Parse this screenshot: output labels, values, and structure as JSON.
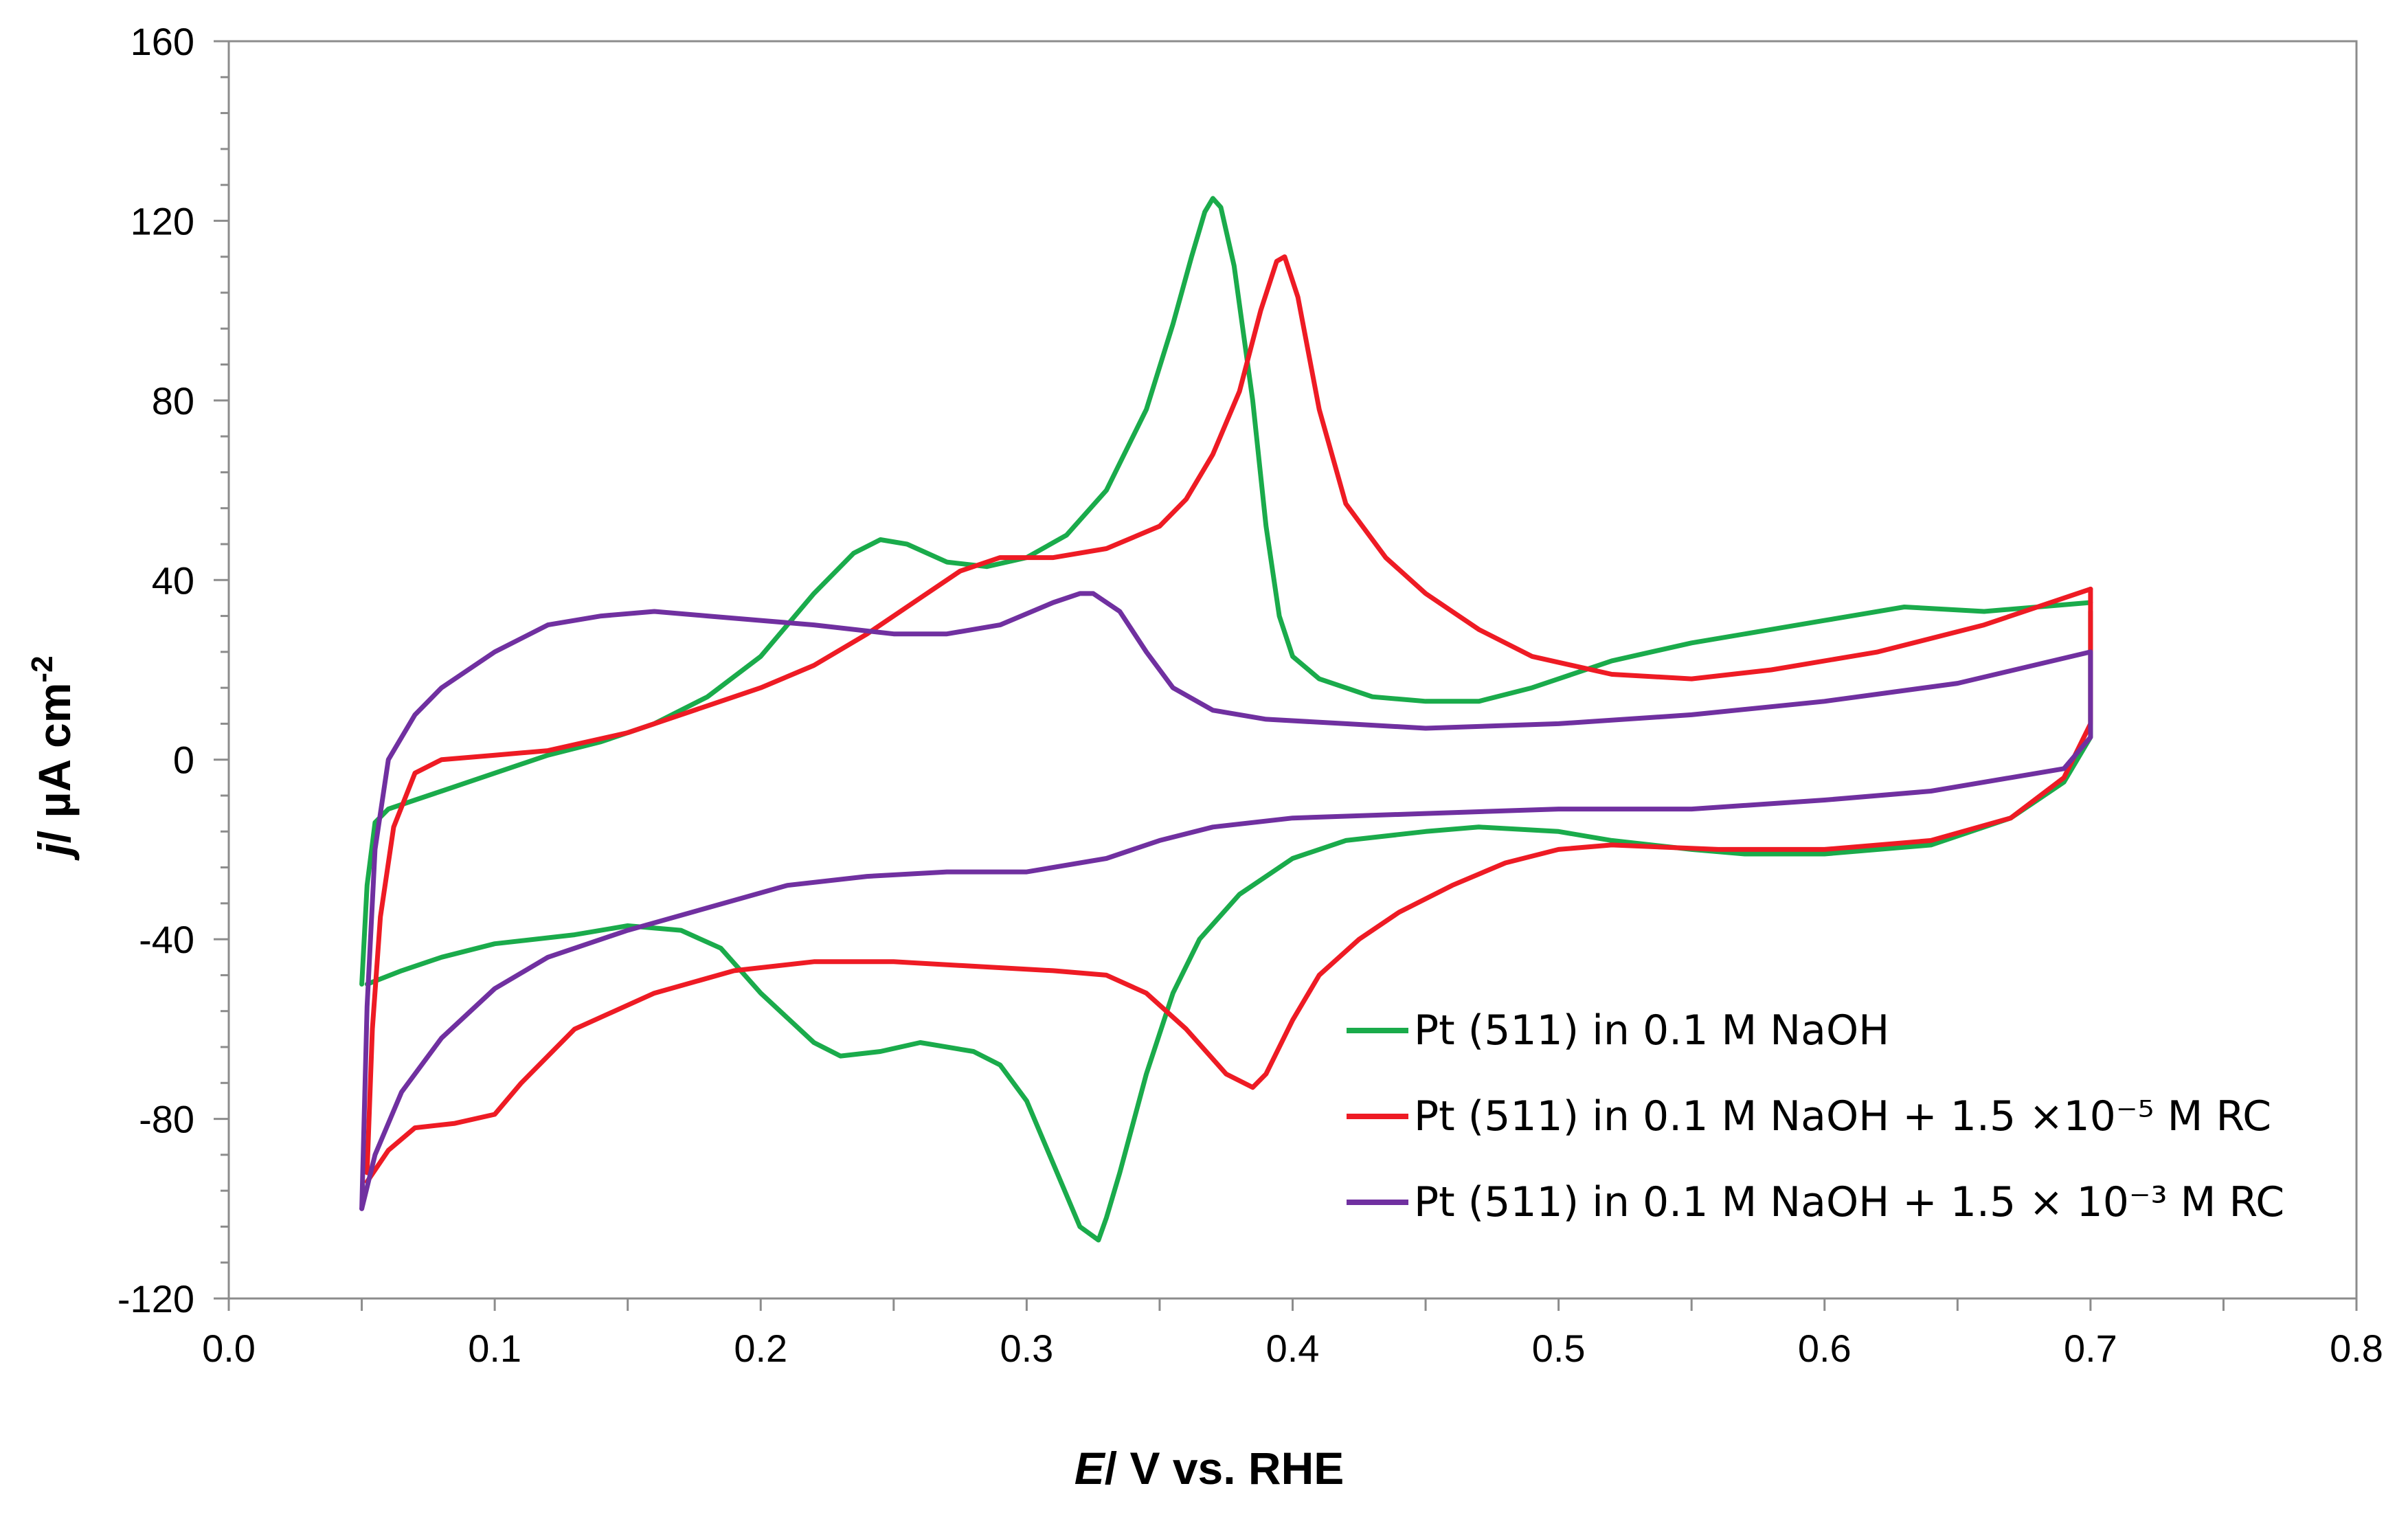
{
  "chart_data": {
    "type": "line",
    "title": "",
    "xlabel": {
      "italic": "E",
      "rest": "/ V  vs. RHE"
    },
    "ylabel": {
      "italic": "j",
      "rest": "/ µA cm",
      "sup": "-2"
    },
    "xlim": [
      0.0,
      0.8
    ],
    "ylim": [
      -120,
      160
    ],
    "xticks": [
      "0.0",
      "0.1",
      "0.2",
      "0.3",
      "0.4",
      "0.5",
      "0.6",
      "0.7",
      "0.8"
    ],
    "yticks": [
      "160",
      "120",
      "80",
      "40",
      "0",
      "-40",
      "-80",
      "-120"
    ],
    "xtick_values": [
      0.0,
      0.1,
      0.2,
      0.3,
      0.4,
      0.5,
      0.6,
      0.7,
      0.8
    ],
    "ytick_values": [
      160,
      120,
      80,
      40,
      0,
      -40,
      -80,
      -120
    ],
    "grid": false,
    "legend_position": "bottom-right",
    "series": [
      {
        "name": "Pt (511) in 0.1 M NaOH",
        "color": "#1aab4b",
        "anodic": [
          [
            0.05,
            -50
          ],
          [
            0.052,
            -28
          ],
          [
            0.055,
            -14
          ],
          [
            0.06,
            -11
          ],
          [
            0.07,
            -9
          ],
          [
            0.08,
            -7
          ],
          [
            0.1,
            -3
          ],
          [
            0.12,
            1
          ],
          [
            0.14,
            4
          ],
          [
            0.16,
            8
          ],
          [
            0.18,
            14
          ],
          [
            0.2,
            23
          ],
          [
            0.22,
            37
          ],
          [
            0.235,
            46
          ],
          [
            0.245,
            49
          ],
          [
            0.255,
            48
          ],
          [
            0.27,
            44
          ],
          [
            0.285,
            43
          ],
          [
            0.3,
            45
          ],
          [
            0.315,
            50
          ],
          [
            0.33,
            60
          ],
          [
            0.345,
            78
          ],
          [
            0.355,
            97
          ],
          [
            0.362,
            112
          ],
          [
            0.367,
            122
          ],
          [
            0.37,
            125
          ],
          [
            0.373,
            123
          ],
          [
            0.378,
            110
          ],
          [
            0.385,
            80
          ],
          [
            0.39,
            52
          ],
          [
            0.395,
            32
          ],
          [
            0.4,
            23
          ],
          [
            0.41,
            18
          ],
          [
            0.43,
            14
          ],
          [
            0.45,
            13
          ],
          [
            0.47,
            13
          ],
          [
            0.49,
            16
          ],
          [
            0.5,
            18
          ],
          [
            0.52,
            22
          ],
          [
            0.55,
            26
          ],
          [
            0.58,
            29
          ],
          [
            0.6,
            31
          ],
          [
            0.63,
            34
          ],
          [
            0.66,
            33
          ],
          [
            0.7,
            35
          ]
        ],
        "cathodic": [
          [
            0.7,
            33
          ],
          [
            0.7,
            5
          ],
          [
            0.69,
            -5
          ],
          [
            0.67,
            -13
          ],
          [
            0.64,
            -19
          ],
          [
            0.6,
            -21
          ],
          [
            0.57,
            -21
          ],
          [
            0.55,
            -20
          ],
          [
            0.52,
            -18
          ],
          [
            0.5,
            -16
          ],
          [
            0.47,
            -15
          ],
          [
            0.45,
            -16
          ],
          [
            0.42,
            -18
          ],
          [
            0.4,
            -22
          ],
          [
            0.38,
            -30
          ],
          [
            0.365,
            -40
          ],
          [
            0.355,
            -52
          ],
          [
            0.345,
            -70
          ],
          [
            0.335,
            -92
          ],
          [
            0.33,
            -102
          ],
          [
            0.327,
            -107
          ],
          [
            0.32,
            -104
          ],
          [
            0.31,
            -90
          ],
          [
            0.3,
            -76
          ],
          [
            0.29,
            -68
          ],
          [
            0.28,
            -65
          ],
          [
            0.26,
            -63
          ],
          [
            0.245,
            -65
          ],
          [
            0.23,
            -66
          ],
          [
            0.22,
            -63
          ],
          [
            0.2,
            -52
          ],
          [
            0.185,
            -42
          ],
          [
            0.17,
            -38
          ],
          [
            0.15,
            -37
          ],
          [
            0.13,
            -39
          ],
          [
            0.1,
            -41
          ],
          [
            0.08,
            -44
          ],
          [
            0.065,
            -47
          ],
          [
            0.052,
            -50
          ]
        ]
      },
      {
        "name": "Pt (511) in 0.1 M NaOH + 1.5 ×10⁻⁵ M  RC",
        "color": "#ee1b24",
        "anodic": [
          [
            0.052,
            -92
          ],
          [
            0.054,
            -60
          ],
          [
            0.057,
            -35
          ],
          [
            0.062,
            -15
          ],
          [
            0.07,
            -3
          ],
          [
            0.08,
            0
          ],
          [
            0.1,
            1
          ],
          [
            0.12,
            2
          ],
          [
            0.15,
            6
          ],
          [
            0.18,
            12
          ],
          [
            0.2,
            16
          ],
          [
            0.22,
            21
          ],
          [
            0.24,
            28
          ],
          [
            0.26,
            36
          ],
          [
            0.275,
            42
          ],
          [
            0.29,
            45
          ],
          [
            0.31,
            45
          ],
          [
            0.33,
            47
          ],
          [
            0.35,
            52
          ],
          [
            0.36,
            58
          ],
          [
            0.37,
            68
          ],
          [
            0.38,
            82
          ],
          [
            0.388,
            100
          ],
          [
            0.394,
            111
          ],
          [
            0.397,
            112
          ],
          [
            0.402,
            103
          ],
          [
            0.41,
            78
          ],
          [
            0.42,
            57
          ],
          [
            0.435,
            45
          ],
          [
            0.45,
            37
          ],
          [
            0.47,
            29
          ],
          [
            0.49,
            23
          ],
          [
            0.52,
            19
          ],
          [
            0.55,
            18
          ],
          [
            0.58,
            20
          ],
          [
            0.62,
            24
          ],
          [
            0.66,
            30
          ],
          [
            0.7,
            38
          ]
        ],
        "cathodic": [
          [
            0.7,
            38
          ],
          [
            0.7,
            8
          ],
          [
            0.69,
            -4
          ],
          [
            0.67,
            -13
          ],
          [
            0.64,
            -18
          ],
          [
            0.6,
            -20
          ],
          [
            0.56,
            -20
          ],
          [
            0.52,
            -19
          ],
          [
            0.5,
            -20
          ],
          [
            0.48,
            -23
          ],
          [
            0.46,
            -28
          ],
          [
            0.44,
            -34
          ],
          [
            0.425,
            -40
          ],
          [
            0.41,
            -48
          ],
          [
            0.4,
            -58
          ],
          [
            0.39,
            -70
          ],
          [
            0.385,
            -73
          ],
          [
            0.375,
            -70
          ],
          [
            0.36,
            -60
          ],
          [
            0.345,
            -52
          ],
          [
            0.33,
            -48
          ],
          [
            0.31,
            -47
          ],
          [
            0.28,
            -46
          ],
          [
            0.25,
            -45
          ],
          [
            0.22,
            -45
          ],
          [
            0.19,
            -47
          ],
          [
            0.16,
            -52
          ],
          [
            0.13,
            -60
          ],
          [
            0.11,
            -72
          ],
          [
            0.1,
            -79
          ],
          [
            0.085,
            -81
          ],
          [
            0.07,
            -82
          ],
          [
            0.06,
            -87
          ],
          [
            0.052,
            -94
          ]
        ]
      },
      {
        "name": "Pt (511) in 0.1 M NaOH + 1.5 × 10⁻³ M RC",
        "color": "#7030a0",
        "anodic": [
          [
            0.05,
            -100
          ],
          [
            0.052,
            -55
          ],
          [
            0.055,
            -20
          ],
          [
            0.06,
            0
          ],
          [
            0.07,
            10
          ],
          [
            0.08,
            16
          ],
          [
            0.1,
            24
          ],
          [
            0.12,
            30
          ],
          [
            0.14,
            32
          ],
          [
            0.16,
            33
          ],
          [
            0.18,
            32
          ],
          [
            0.2,
            31
          ],
          [
            0.22,
            30
          ],
          [
            0.25,
            28
          ],
          [
            0.27,
            28
          ],
          [
            0.29,
            30
          ],
          [
            0.31,
            35
          ],
          [
            0.32,
            37
          ],
          [
            0.325,
            37
          ],
          [
            0.335,
            33
          ],
          [
            0.345,
            24
          ],
          [
            0.355,
            16
          ],
          [
            0.37,
            11
          ],
          [
            0.39,
            9
          ],
          [
            0.42,
            8
          ],
          [
            0.45,
            7
          ],
          [
            0.5,
            8
          ],
          [
            0.55,
            10
          ],
          [
            0.6,
            13
          ],
          [
            0.65,
            17
          ],
          [
            0.7,
            24
          ]
        ],
        "cathodic": [
          [
            0.7,
            24
          ],
          [
            0.7,
            5
          ],
          [
            0.69,
            -2
          ],
          [
            0.67,
            -4
          ],
          [
            0.64,
            -7
          ],
          [
            0.6,
            -9
          ],
          [
            0.55,
            -11
          ],
          [
            0.5,
            -11
          ],
          [
            0.45,
            -12
          ],
          [
            0.4,
            -13
          ],
          [
            0.37,
            -15
          ],
          [
            0.35,
            -18
          ],
          [
            0.33,
            -22
          ],
          [
            0.3,
            -25
          ],
          [
            0.27,
            -25
          ],
          [
            0.24,
            -26
          ],
          [
            0.21,
            -28
          ],
          [
            0.18,
            -33
          ],
          [
            0.15,
            -38
          ],
          [
            0.12,
            -44
          ],
          [
            0.1,
            -51
          ],
          [
            0.08,
            -62
          ],
          [
            0.065,
            -74
          ],
          [
            0.055,
            -88
          ],
          [
            0.05,
            -100
          ]
        ]
      }
    ]
  }
}
